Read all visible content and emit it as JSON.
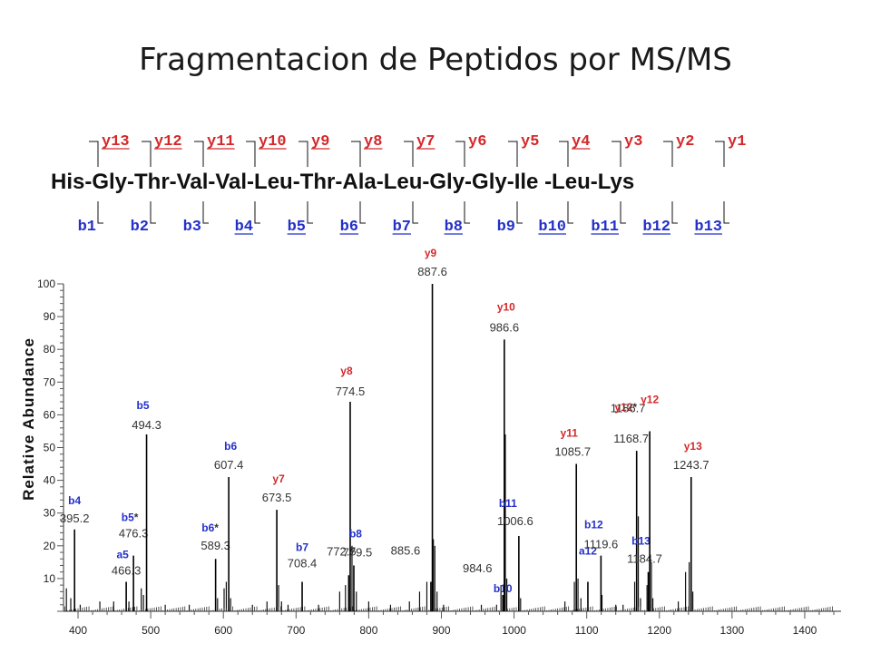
{
  "title": "Fragmentacion de Peptidos por MS/MS",
  "sequence": {
    "residues": [
      "His",
      "Gly",
      "Thr",
      "Val",
      "Val",
      "Leu",
      "Thr",
      "Ala",
      "Leu",
      "Gly",
      "Gly",
      "Ile",
      "Leu",
      "Lys"
    ],
    "text": "His-Gly-Thr-Val-Val-Leu-Thr-Ala-Leu-Gly-Gly-Ile  -Leu-Lys",
    "y_ions": [
      {
        "label": "y13",
        "observed": true
      },
      {
        "label": "y12",
        "observed": true
      },
      {
        "label": "y11",
        "observed": true
      },
      {
        "label": "y10",
        "observed": true
      },
      {
        "label": "y9",
        "observed": true
      },
      {
        "label": "y8",
        "observed": true
      },
      {
        "label": "y7",
        "observed": true
      },
      {
        "label": "y6",
        "observed": false
      },
      {
        "label": "y5",
        "observed": false
      },
      {
        "label": "y4",
        "observed": true
      },
      {
        "label": "y3",
        "observed": false
      },
      {
        "label": "y2",
        "observed": false
      },
      {
        "label": "y1",
        "observed": false
      }
    ],
    "b_ions": [
      {
        "label": "b1",
        "observed": false
      },
      {
        "label": "b2",
        "observed": false
      },
      {
        "label": "b3",
        "observed": false
      },
      {
        "label": "b4",
        "observed": true
      },
      {
        "label": "b5",
        "observed": true
      },
      {
        "label": "b6",
        "observed": true
      },
      {
        "label": "b7",
        "observed": true
      },
      {
        "label": "b8",
        "observed": true
      },
      {
        "label": "b9",
        "observed": false
      },
      {
        "label": "b10",
        "observed": true
      },
      {
        "label": "b11",
        "observed": true
      },
      {
        "label": "b12",
        "observed": true
      },
      {
        "label": "b13",
        "observed": true
      }
    ]
  },
  "colors": {
    "y_ion": "#d4292b",
    "b_ion": "#2330c9",
    "peak": "#000000"
  },
  "chart_data": {
    "type": "bar",
    "xlabel": "",
    "ylabel": "Relative Abundance",
    "xlim": [
      380,
      1450
    ],
    "ylim": [
      0,
      100
    ],
    "x_ticks": [
      400,
      500,
      600,
      700,
      800,
      900,
      1000,
      1100,
      1200,
      1300,
      1400
    ],
    "y_ticks": [
      10,
      20,
      30,
      40,
      50,
      60,
      70,
      80,
      90,
      100
    ],
    "annotated_peaks": [
      {
        "mz": 395.2,
        "intensity": 25,
        "ion": "b4",
        "ion_type": "b",
        "mass_label": "395.2"
      },
      {
        "mz": 466.3,
        "intensity": 9,
        "ion": "a5",
        "ion_type": "b",
        "mass_label": "466.3"
      },
      {
        "mz": 476.3,
        "intensity": 17,
        "ion": "b5*",
        "ion_type": "b",
        "mass_label": "476.3"
      },
      {
        "mz": 494.3,
        "intensity": 54,
        "ion": "b5",
        "ion_type": "b",
        "mass_label": "494.3"
      },
      {
        "mz": 589.3,
        "intensity": 16,
        "ion": "b6*",
        "ion_type": "b",
        "mass_label": "589.3"
      },
      {
        "mz": 607.4,
        "intensity": 41,
        "ion": "b6",
        "ion_type": "b",
        "mass_label": "607.4"
      },
      {
        "mz": 673.5,
        "intensity": 31,
        "ion": "y7",
        "ion_type": "y",
        "mass_label": "673.5"
      },
      {
        "mz": 708.4,
        "intensity": 9,
        "ion": "b7",
        "ion_type": "b",
        "mass_label": "708.4"
      },
      {
        "mz": 772.5,
        "intensity": 11,
        "ion": "",
        "ion_type": "",
        "mass_label": "772.5"
      },
      {
        "mz": 774.5,
        "intensity": 64,
        "ion": "y8",
        "ion_type": "y",
        "mass_label": "774.5"
      },
      {
        "mz": 779.5,
        "intensity": 14,
        "ion": "b8",
        "ion_type": "b",
        "mass_label": "779.5"
      },
      {
        "mz": 885.6,
        "intensity": 9,
        "ion": "",
        "ion_type": "",
        "mass_label": "885.6"
      },
      {
        "mz": 887.6,
        "intensity": 100,
        "ion": "y9",
        "ion_type": "y",
        "mass_label": "887.6"
      },
      {
        "mz": 984.6,
        "intensity": 5,
        "ion": "b10",
        "ion_type": "b",
        "mass_label": "984.6"
      },
      {
        "mz": 986.6,
        "intensity": 83,
        "ion": "y10",
        "ion_type": "y",
        "mass_label": "986.6"
      },
      {
        "mz": 1006.6,
        "intensity": 23,
        "ion": "b11",
        "ion_type": "b",
        "mass_label": "1006.6"
      },
      {
        "mz": 1085.7,
        "intensity": 45,
        "ion": "y11",
        "ion_type": "y",
        "mass_label": "1085.7"
      },
      {
        "mz": 1101.6,
        "intensity": 9,
        "ion": "a12",
        "ion_type": "b",
        "mass_label": ""
      },
      {
        "mz": 1119.6,
        "intensity": 17,
        "ion": "b12",
        "ion_type": "b",
        "mass_label": "1119.6"
      },
      {
        "mz": 1168.7,
        "intensity": 49,
        "ion": "y12*",
        "ion_type": "y",
        "mass_label": "1168.7"
      },
      {
        "mz": 1184.7,
        "intensity": 12,
        "ion": "b13",
        "ion_type": "b",
        "mass_label": "1184.7"
      },
      {
        "mz": 1186.7,
        "intensity": 55,
        "ion": "y12",
        "ion_type": "y",
        "mass_label": "1186.7"
      },
      {
        "mz": 1243.7,
        "intensity": 41,
        "ion": "y13",
        "ion_type": "y",
        "mass_label": "1243.7"
      }
    ],
    "minor_peaks": [
      {
        "mz": 384,
        "intensity": 7
      },
      {
        "mz": 390,
        "intensity": 4
      },
      {
        "mz": 403,
        "intensity": 2
      },
      {
        "mz": 430,
        "intensity": 3
      },
      {
        "mz": 449,
        "intensity": 3
      },
      {
        "mz": 470,
        "intensity": 3
      },
      {
        "mz": 487,
        "intensity": 7
      },
      {
        "mz": 490,
        "intensity": 5
      },
      {
        "mz": 520,
        "intensity": 2
      },
      {
        "mz": 553,
        "intensity": 2
      },
      {
        "mz": 592,
        "intensity": 4
      },
      {
        "mz": 601,
        "intensity": 7
      },
      {
        "mz": 604,
        "intensity": 9
      },
      {
        "mz": 610,
        "intensity": 4
      },
      {
        "mz": 640,
        "intensity": 2
      },
      {
        "mz": 660,
        "intensity": 3
      },
      {
        "mz": 676,
        "intensity": 8
      },
      {
        "mz": 680,
        "intensity": 3
      },
      {
        "mz": 689,
        "intensity": 2
      },
      {
        "mz": 731,
        "intensity": 2
      },
      {
        "mz": 760,
        "intensity": 6
      },
      {
        "mz": 768,
        "intensity": 8
      },
      {
        "mz": 777,
        "intensity": 20
      },
      {
        "mz": 783,
        "intensity": 6
      },
      {
        "mz": 800,
        "intensity": 3
      },
      {
        "mz": 830,
        "intensity": 2
      },
      {
        "mz": 856,
        "intensity": 3
      },
      {
        "mz": 870,
        "intensity": 6
      },
      {
        "mz": 880,
        "intensity": 9
      },
      {
        "mz": 889,
        "intensity": 22
      },
      {
        "mz": 891,
        "intensity": 20
      },
      {
        "mz": 894,
        "intensity": 6
      },
      {
        "mz": 903,
        "intensity": 2
      },
      {
        "mz": 955,
        "intensity": 2
      },
      {
        "mz": 976,
        "intensity": 2
      },
      {
        "mz": 982,
        "intensity": 8
      },
      {
        "mz": 988,
        "intensity": 54
      },
      {
        "mz": 990,
        "intensity": 10
      },
      {
        "mz": 1009,
        "intensity": 4
      },
      {
        "mz": 1070,
        "intensity": 3
      },
      {
        "mz": 1083,
        "intensity": 9
      },
      {
        "mz": 1088,
        "intensity": 10
      },
      {
        "mz": 1092,
        "intensity": 4
      },
      {
        "mz": 1121,
        "intensity": 5
      },
      {
        "mz": 1140,
        "intensity": 2
      },
      {
        "mz": 1150,
        "intensity": 2
      },
      {
        "mz": 1166,
        "intensity": 9
      },
      {
        "mz": 1171,
        "intensity": 29
      },
      {
        "mz": 1174,
        "intensity": 4
      },
      {
        "mz": 1183,
        "intensity": 8
      },
      {
        "mz": 1189,
        "intensity": 15
      },
      {
        "mz": 1191,
        "intensity": 4
      },
      {
        "mz": 1226,
        "intensity": 3
      },
      {
        "mz": 1236,
        "intensity": 12
      },
      {
        "mz": 1241,
        "intensity": 15
      },
      {
        "mz": 1246,
        "intensity": 6
      }
    ]
  }
}
